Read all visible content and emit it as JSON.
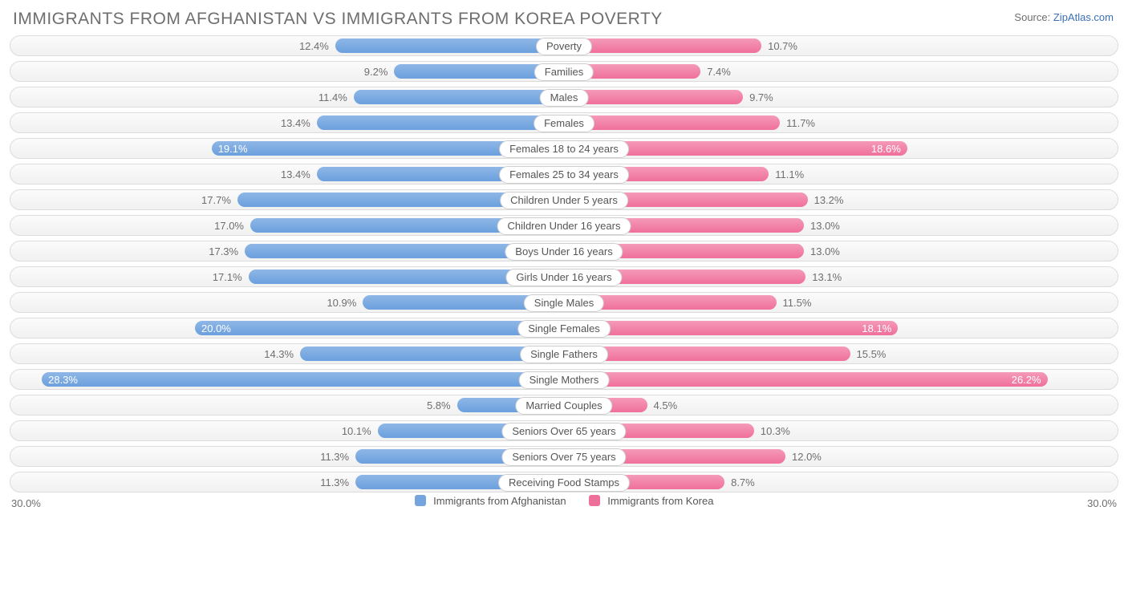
{
  "title": "IMMIGRANTS FROM AFGHANISTAN VS IMMIGRANTS FROM KOREA POVERTY",
  "source_label": "Source:",
  "source_name": "ZipAtlas.com",
  "chart": {
    "type": "diverging-bar",
    "max_percent": 30.0,
    "axis_left_label": "30.0%",
    "axis_right_label": "30.0%",
    "inside_label_threshold": 18.0,
    "background_color": "#ffffff",
    "track_gradient_top": "#fbfbfb",
    "track_gradient_bottom": "#f1f1f1",
    "track_border": "#dcdcdc",
    "label_fontsize": 13,
    "title_fontsize": 21,
    "title_color": "#6e6e6e",
    "value_color_outside": "#6e6e6e",
    "value_color_inside": "#ffffff",
    "series": [
      {
        "key": "afghanistan",
        "name": "Immigrants from Afghanistan",
        "side": "left",
        "color_top": "#8fb7e6",
        "color_bottom": "#6b9fdd",
        "swatch": "#74a5df"
      },
      {
        "key": "korea",
        "name": "Immigrants from Korea",
        "side": "right",
        "color_top": "#f59ab8",
        "color_bottom": "#ef6f9b",
        "swatch": "#ef6f9b"
      }
    ],
    "categories": [
      {
        "label": "Poverty",
        "afghanistan": 12.4,
        "korea": 10.7
      },
      {
        "label": "Families",
        "afghanistan": 9.2,
        "korea": 7.4
      },
      {
        "label": "Males",
        "afghanistan": 11.4,
        "korea": 9.7
      },
      {
        "label": "Females",
        "afghanistan": 13.4,
        "korea": 11.7
      },
      {
        "label": "Females 18 to 24 years",
        "afghanistan": 19.1,
        "korea": 18.6
      },
      {
        "label": "Females 25 to 34 years",
        "afghanistan": 13.4,
        "korea": 11.1
      },
      {
        "label": "Children Under 5 years",
        "afghanistan": 17.7,
        "korea": 13.2
      },
      {
        "label": "Children Under 16 years",
        "afghanistan": 17.0,
        "korea": 13.0
      },
      {
        "label": "Boys Under 16 years",
        "afghanistan": 17.3,
        "korea": 13.0
      },
      {
        "label": "Girls Under 16 years",
        "afghanistan": 17.1,
        "korea": 13.1
      },
      {
        "label": "Single Males",
        "afghanistan": 10.9,
        "korea": 11.5
      },
      {
        "label": "Single Females",
        "afghanistan": 20.0,
        "korea": 18.1
      },
      {
        "label": "Single Fathers",
        "afghanistan": 14.3,
        "korea": 15.5
      },
      {
        "label": "Single Mothers",
        "afghanistan": 28.3,
        "korea": 26.2
      },
      {
        "label": "Married Couples",
        "afghanistan": 5.8,
        "korea": 4.5
      },
      {
        "label": "Seniors Over 65 years",
        "afghanistan": 10.1,
        "korea": 10.3
      },
      {
        "label": "Seniors Over 75 years",
        "afghanistan": 11.3,
        "korea": 12.0
      },
      {
        "label": "Receiving Food Stamps",
        "afghanistan": 11.3,
        "korea": 8.7
      }
    ]
  }
}
